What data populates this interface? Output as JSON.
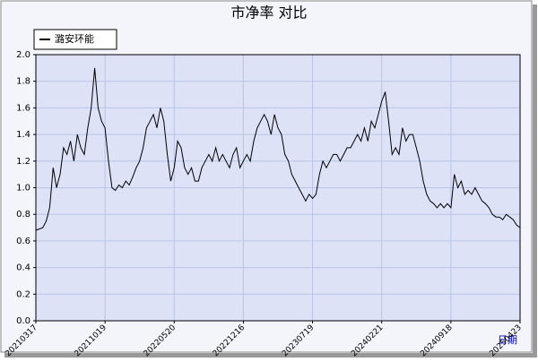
{
  "chart_data": {
    "type": "line",
    "title": "市净率  对比",
    "x_label": "日期",
    "categories": [
      "20210317",
      null,
      null,
      null,
      null,
      null,
      null,
      null,
      null,
      null,
      null,
      null,
      null,
      null,
      null,
      null,
      null,
      null,
      null,
      null,
      "20211019",
      null,
      null,
      null,
      null,
      null,
      null,
      null,
      null,
      null,
      null,
      null,
      null,
      null,
      null,
      null,
      null,
      null,
      null,
      null,
      "20220520",
      null,
      null,
      null,
      null,
      null,
      null,
      null,
      null,
      null,
      null,
      null,
      null,
      null,
      null,
      null,
      null,
      null,
      null,
      null,
      "20221216",
      null,
      null,
      null,
      null,
      null,
      null,
      null,
      null,
      null,
      null,
      null,
      null,
      null,
      null,
      null,
      null,
      null,
      null,
      null,
      "20230719",
      null,
      null,
      null,
      null,
      null,
      null,
      null,
      null,
      null,
      null,
      null,
      null,
      null,
      null,
      null,
      null,
      null,
      null,
      null,
      "20240221",
      null,
      null,
      null,
      null,
      null,
      null,
      null,
      null,
      null,
      null,
      null,
      null,
      null,
      null,
      null,
      null,
      null,
      null,
      null,
      "20240918",
      null,
      null,
      null,
      null,
      null,
      null,
      null,
      null,
      null,
      null,
      null,
      null,
      null,
      null,
      null,
      null,
      null,
      null,
      null,
      "20250423"
    ],
    "series": [
      {
        "name": "潞安环能",
        "color": "#000000",
        "values": [
          0.68,
          0.69,
          0.7,
          0.75,
          0.85,
          1.15,
          1.0,
          1.1,
          1.3,
          1.25,
          1.35,
          1.2,
          1.4,
          1.3,
          1.25,
          1.45,
          1.6,
          1.9,
          1.6,
          1.5,
          1.45,
          1.2,
          1.0,
          0.98,
          1.02,
          1.0,
          1.05,
          1.02,
          1.08,
          1.15,
          1.2,
          1.3,
          1.45,
          1.5,
          1.55,
          1.45,
          1.6,
          1.5,
          1.25,
          1.05,
          1.15,
          1.35,
          1.3,
          1.15,
          1.1,
          1.15,
          1.05,
          1.05,
          1.15,
          1.2,
          1.25,
          1.2,
          1.3,
          1.2,
          1.25,
          1.2,
          1.15,
          1.25,
          1.3,
          1.15,
          1.2,
          1.25,
          1.2,
          1.35,
          1.45,
          1.5,
          1.55,
          1.5,
          1.4,
          1.55,
          1.45,
          1.4,
          1.25,
          1.2,
          1.1,
          1.05,
          1.0,
          0.95,
          0.9,
          0.95,
          0.92,
          0.95,
          1.1,
          1.2,
          1.15,
          1.2,
          1.25,
          1.25,
          1.2,
          1.25,
          1.3,
          1.3,
          1.35,
          1.4,
          1.35,
          1.45,
          1.35,
          1.5,
          1.45,
          1.55,
          1.65,
          1.72,
          1.5,
          1.25,
          1.3,
          1.25,
          1.45,
          1.35,
          1.4,
          1.4,
          1.3,
          1.2,
          1.05,
          0.95,
          0.9,
          0.88,
          0.85,
          0.88,
          0.85,
          0.88,
          0.85,
          1.1,
          1.0,
          1.05,
          0.95,
          0.98,
          0.95,
          1.0,
          0.95,
          0.9,
          0.88,
          0.85,
          0.8,
          0.78,
          0.78,
          0.76,
          0.8,
          0.78,
          0.76,
          0.72,
          0.7
        ]
      }
    ],
    "ylim": [
      0,
      2
    ],
    "yticks": [
      {
        "value": 0,
        "label": "0.0"
      },
      0.2,
      0.4,
      0.6,
      0.8,
      {
        "value": 1,
        "label": "1.0"
      },
      1.2,
      1.4,
      1.6,
      1.8,
      {
        "value": 2,
        "label": "2.0"
      }
    ],
    "grid": true,
    "legend": "top-left"
  }
}
